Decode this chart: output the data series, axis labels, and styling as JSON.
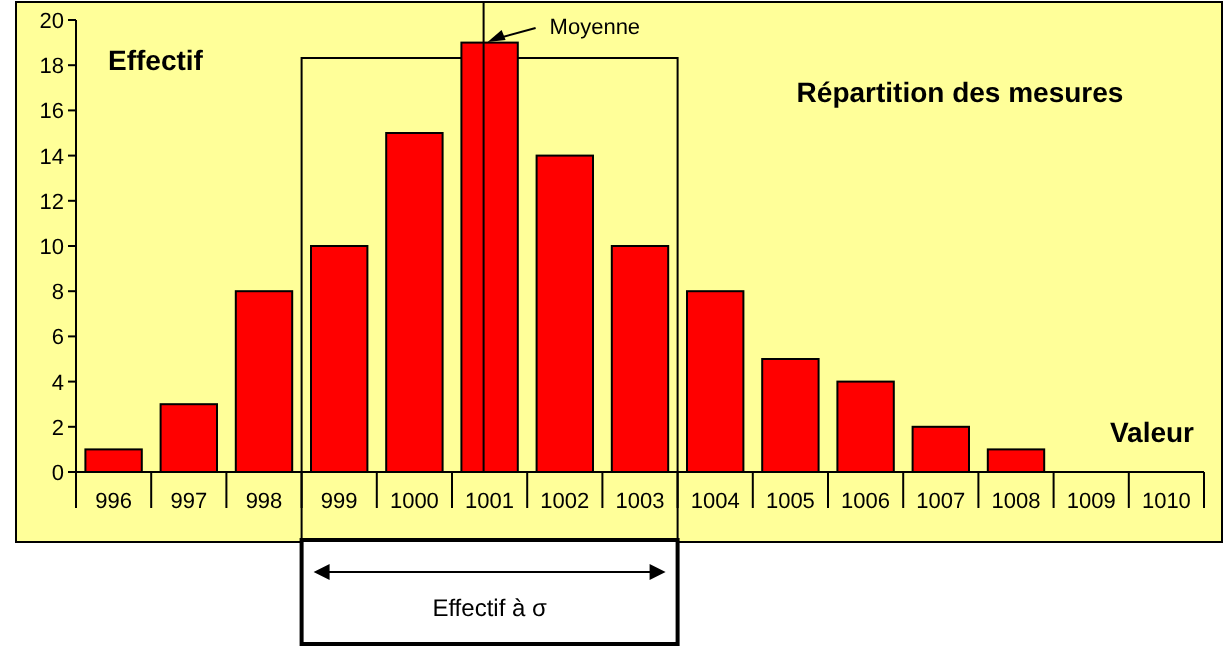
{
  "chart_data": {
    "type": "bar",
    "title": "Répartition des mesures",
    "ylabel": "Effectif",
    "xlabel": "Valeur",
    "categories": [
      "996",
      "997",
      "998",
      "999",
      "1000",
      "1001",
      "1002",
      "1003",
      "1004",
      "1005",
      "1006",
      "1007",
      "1008",
      "1009",
      "1010"
    ],
    "values": [
      1,
      3,
      8,
      10,
      15,
      19,
      14,
      10,
      8,
      5,
      4,
      2,
      1,
      0,
      0
    ],
    "color": "#ff0000",
    "ylim": [
      0,
      20
    ],
    "yticks": [
      0,
      2,
      4,
      6,
      8,
      10,
      12,
      14,
      16,
      18,
      20
    ],
    "ref_lines": [
      {
        "axis": "x",
        "value": "1001",
        "label": "Moyenne",
        "color": "#000000"
      }
    ],
    "annotations": [
      "Effectif à σ"
    ]
  }
}
